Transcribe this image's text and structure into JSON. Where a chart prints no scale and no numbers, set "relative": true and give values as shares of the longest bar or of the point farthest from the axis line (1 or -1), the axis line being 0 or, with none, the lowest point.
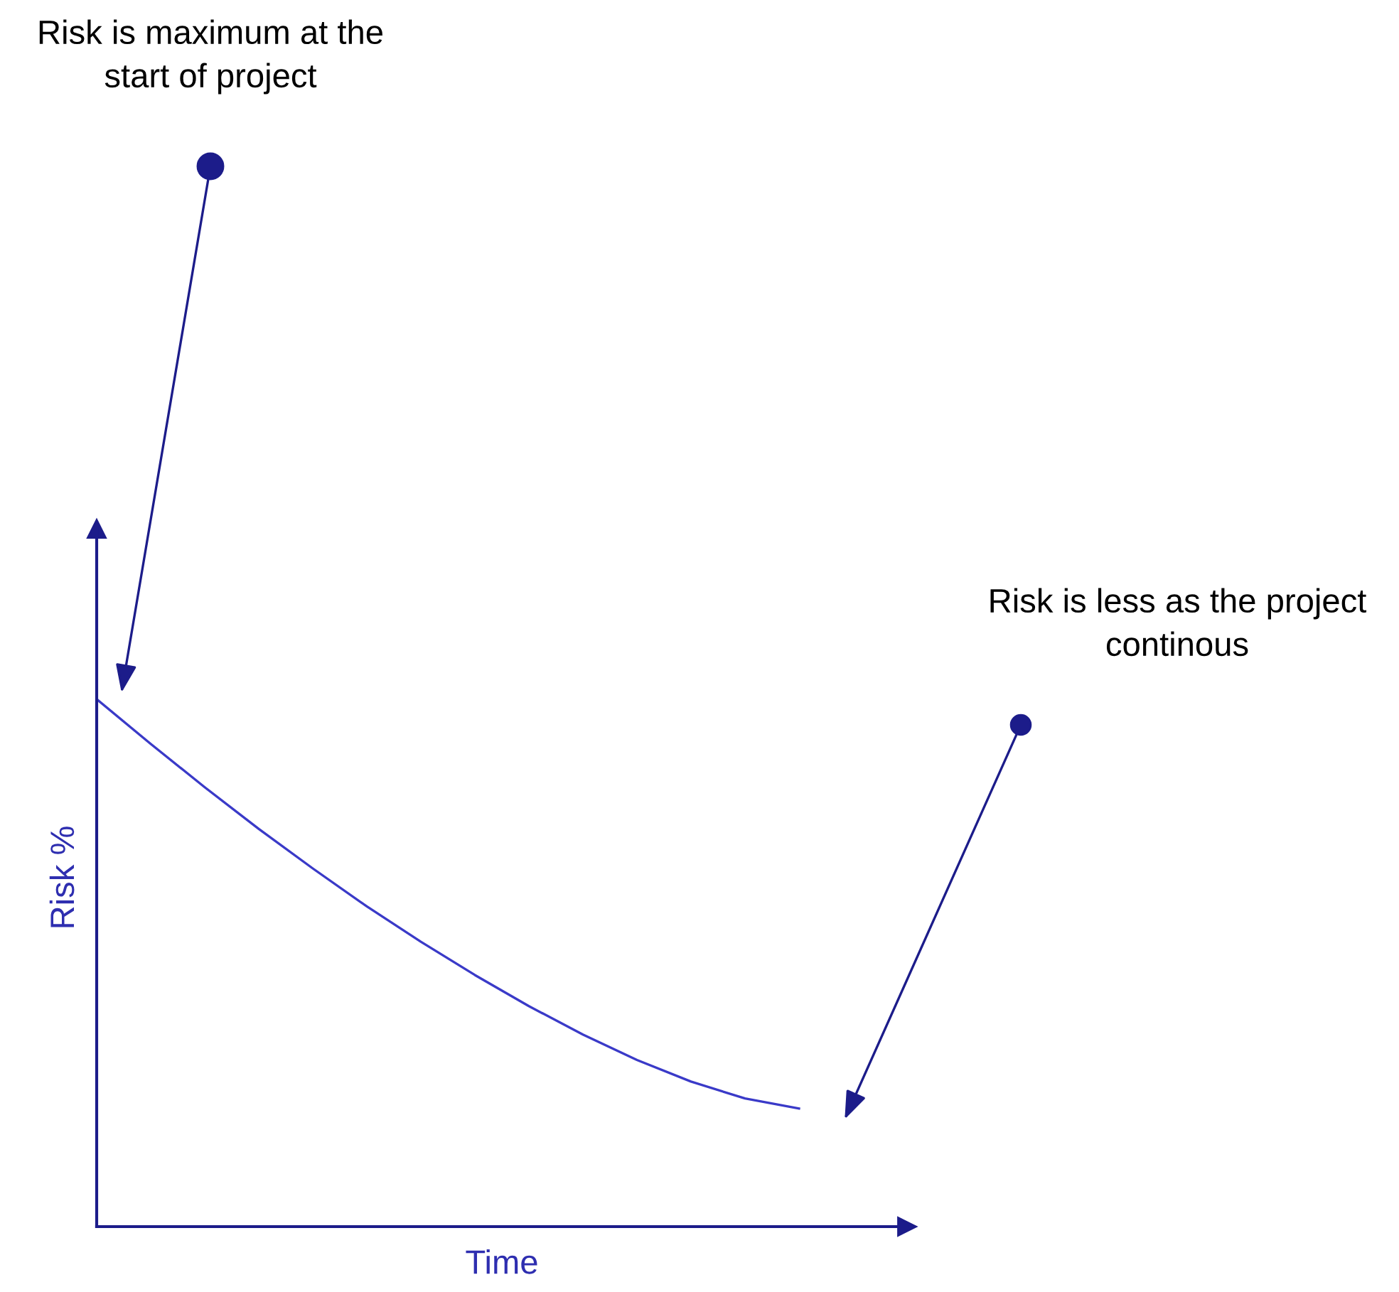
{
  "chart_data": {
    "type": "line",
    "relative": true,
    "xlabel": "Time",
    "ylabel": "Risk %",
    "categories": [
      null,
      null,
      null,
      null,
      null,
      null,
      null,
      null,
      null,
      null,
      null,
      null,
      null,
      null,
      null,
      null
    ],
    "series": [
      {
        "color": "#3a3ac8",
        "values": [
          1.0,
          0.915,
          0.833,
          0.754,
          0.679,
          0.607,
          0.54,
          0.477,
          0.418,
          0.364,
          0.316,
          0.275,
          0.243,
          0.224,
          null,
          null
        ]
      }
    ],
    "annotations": [
      "Risk is maximum at the\nstart of project",
      "Risk is less as the project\ncontinous"
    ],
    "grid": false,
    "legend": false,
    "marker": "none",
    "line_style": "solid"
  }
}
